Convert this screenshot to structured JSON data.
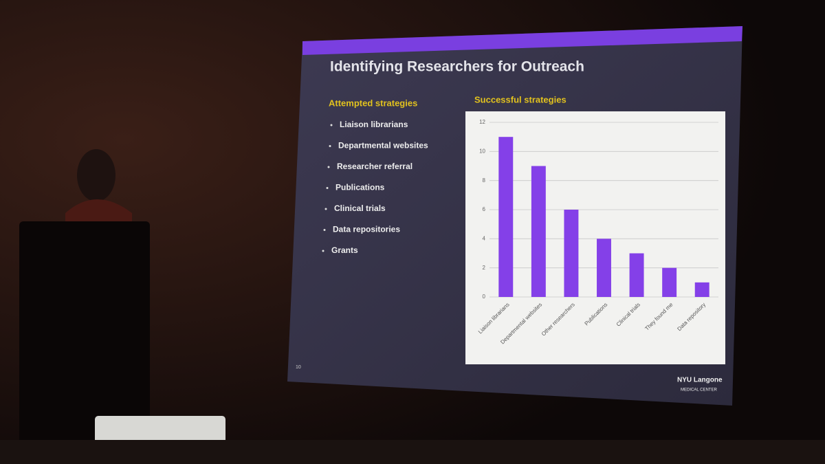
{
  "slide": {
    "title": "Identifying Researchers for Outreach",
    "left_heading": "Attempted strategies",
    "bullets": [
      "Liaison librarians",
      "Departmental websites",
      "Researcher referral",
      "Publications",
      "Clinical trials",
      "Data repositories",
      "Grants"
    ],
    "right_heading": "Successful strategies",
    "page_number": "10",
    "logo": [
      "NYU Langone",
      "MEDICAL CENTER"
    ]
  },
  "chart_data": {
    "type": "bar",
    "categories": [
      "Liaison librarians",
      "Departmental websites",
      "Other researchers",
      "Publications",
      "Clinical trials",
      "They found me",
      "Data repository"
    ],
    "values": [
      11,
      9,
      6,
      4,
      3,
      2,
      1
    ],
    "color": "#8440e8",
    "ylim": [
      0,
      12
    ],
    "yticks": [
      0,
      2,
      4,
      6,
      8,
      10,
      12
    ],
    "grid": true
  }
}
